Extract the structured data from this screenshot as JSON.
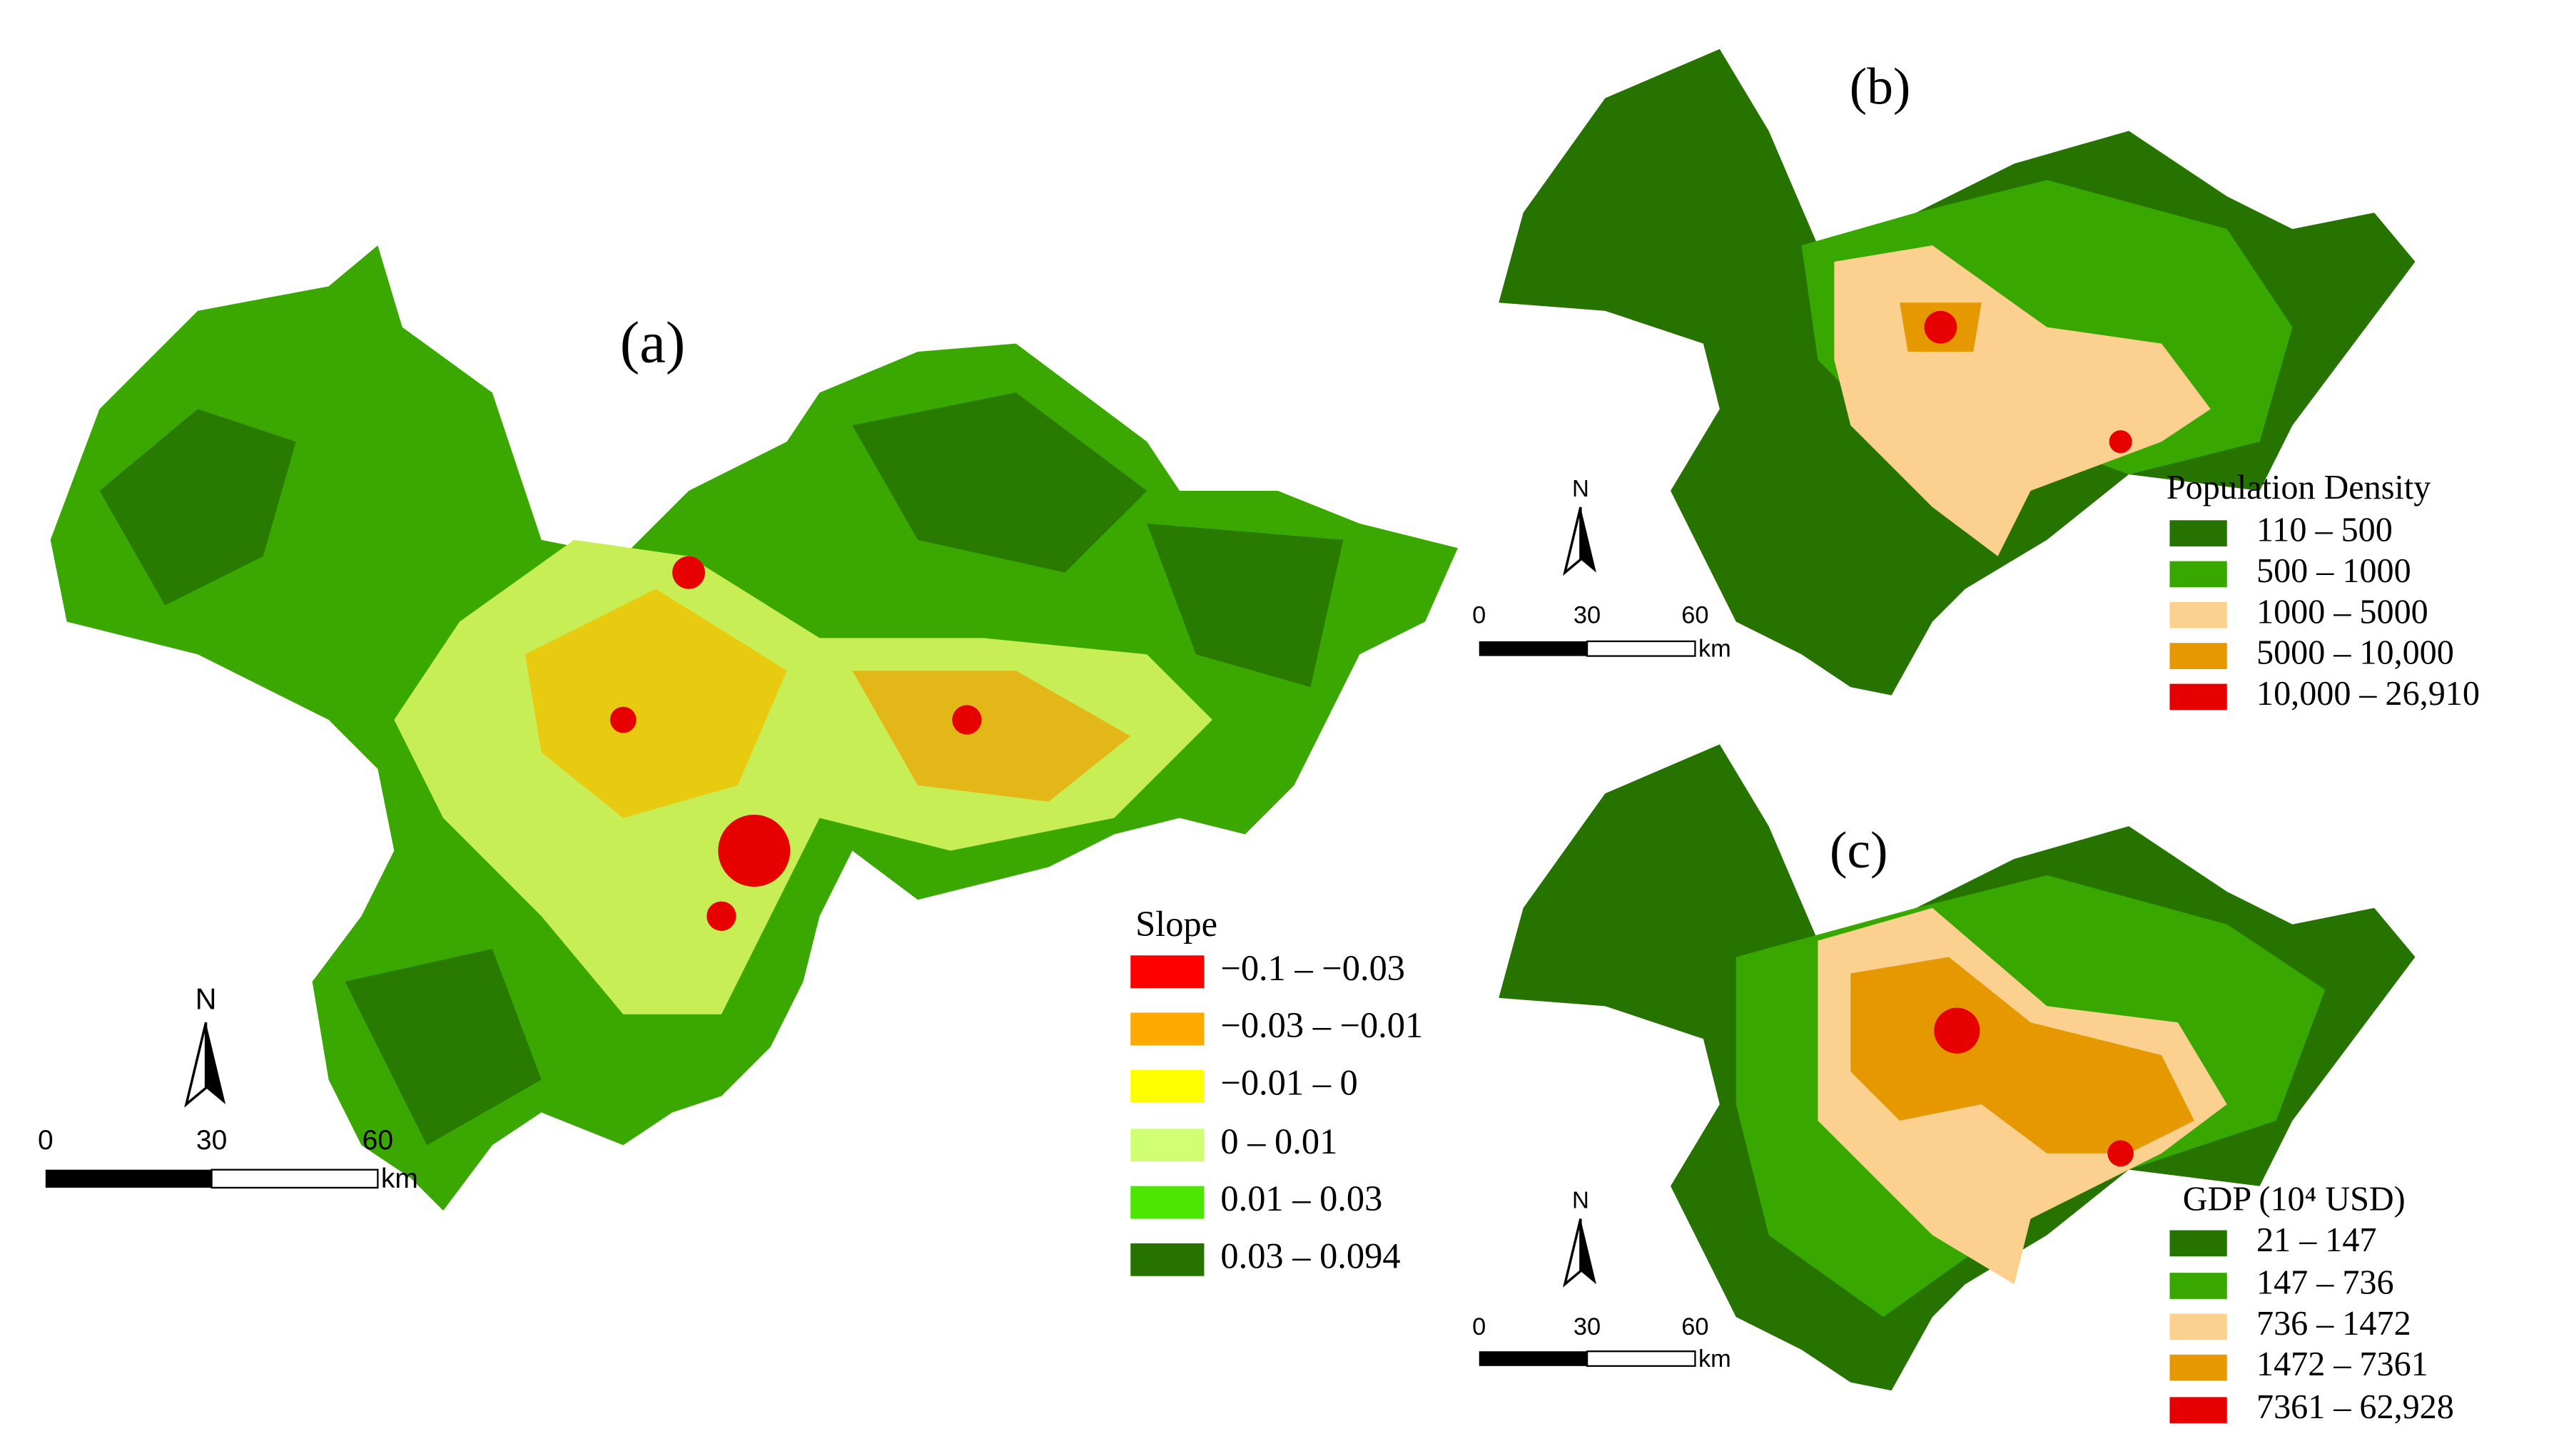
{
  "panels": [
    {
      "label": "(a)",
      "legend_title": "Slope",
      "legend": [
        {
          "label": "−0.1 – −0.03",
          "color": "#ff0000"
        },
        {
          "label": "−0.03 – −0.01",
          "color": "#ffaa00"
        },
        {
          "label": "−0.01 – 0",
          "color": "#ffff00"
        },
        {
          "label": "0 – 0.01",
          "color": "#d1ff73"
        },
        {
          "label": "0.01 – 0.03",
          "color": "#4ce600"
        },
        {
          "label": "0.03 – 0.094",
          "color": "#267300"
        }
      ],
      "scale_labels": [
        "0",
        "30",
        "60"
      ],
      "scale_unit": "km",
      "north": "N"
    },
    {
      "label": "(b)",
      "legend_title": "Population Density",
      "legend": [
        {
          "label": "110 – 500",
          "color": "#267300"
        },
        {
          "label": "500 – 1000",
          "color": "#38a800"
        },
        {
          "label": "1000 – 5000",
          "color": "#fcd08f"
        },
        {
          "label": "5000 – 10,000",
          "color": "#e69800"
        },
        {
          "label": "10,000 – 26,910",
          "color": "#e60000"
        }
      ],
      "scale_labels": [
        "0",
        "30",
        "60"
      ],
      "scale_unit": "km",
      "north": "N"
    },
    {
      "label": "(c)",
      "legend_title": "GDP (10⁴ USD)",
      "legend": [
        {
          "label": "21 – 147",
          "color": "#267300"
        },
        {
          "label": "147 – 736",
          "color": "#38a800"
        },
        {
          "label": "736 – 1472",
          "color": "#fcd08f"
        },
        {
          "label": "1472 – 7361",
          "color": "#e69800"
        },
        {
          "label": "7361 – 62,928",
          "color": "#e60000"
        }
      ],
      "scale_labels": [
        "0",
        "30",
        "60"
      ],
      "scale_unit": "km",
      "north": "N"
    }
  ]
}
